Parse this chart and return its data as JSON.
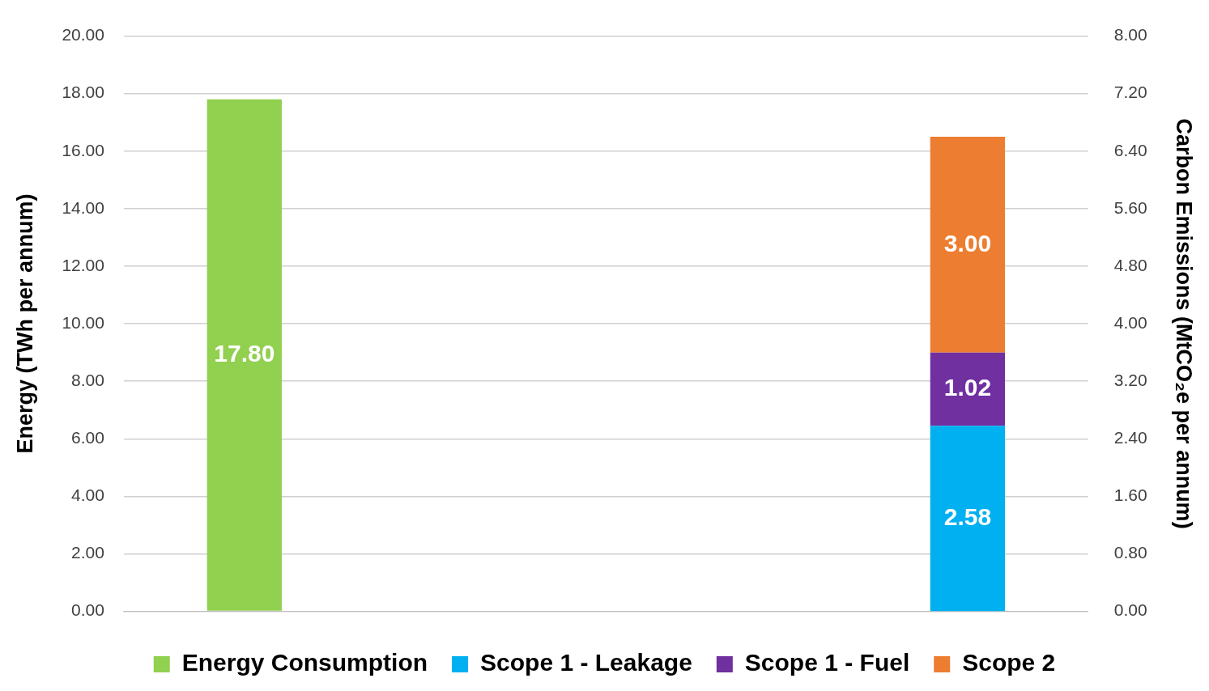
{
  "chart_data": {
    "type": "bar",
    "stacked": true,
    "categories": [
      null,
      null
    ],
    "ylabel": "Energy (TWh per annum)",
    "y2label": "Carbon Emissions (MtCO₂e per annum)",
    "ylim": [
      0,
      20
    ],
    "yticks": [
      {
        "value": 0,
        "label": "0.00"
      },
      {
        "value": 2,
        "label": "2.00"
      },
      {
        "value": 4,
        "label": "4.00"
      },
      {
        "value": 6,
        "label": "6.00"
      },
      {
        "value": 8,
        "label": "8.00"
      },
      {
        "value": 10,
        "label": "10.00"
      },
      {
        "value": 12,
        "label": "12.00"
      },
      {
        "value": 14,
        "label": "14.00"
      },
      {
        "value": 16,
        "label": "16.00"
      },
      {
        "value": 18,
        "label": "18.00"
      },
      {
        "value": 20,
        "label": "20.00"
      }
    ],
    "y2lim": [
      0,
      8
    ],
    "y2ticks": [
      {
        "value": 0,
        "label": "0.00"
      },
      {
        "value": 0.8,
        "label": "0.80"
      },
      {
        "value": 1.6,
        "label": "1.60"
      },
      {
        "value": 2.4,
        "label": "2.40"
      },
      {
        "value": 3.2,
        "label": "3.20"
      },
      {
        "value": 4,
        "label": "4.00"
      },
      {
        "value": 4.8,
        "label": "4.80"
      },
      {
        "value": 5.6,
        "label": "5.60"
      },
      {
        "value": 6.4,
        "label": "6.40"
      },
      {
        "value": 7.2,
        "label": "7.20"
      },
      {
        "value": 8,
        "label": "8.00"
      }
    ],
    "grid": "y",
    "legend": "bottom",
    "series": [
      {
        "name": "Energy Consumption",
        "color": "#92d050",
        "values": [
          17.8,
          null
        ],
        "value_labels": [
          "17.80",
          null
        ]
      },
      {
        "name": "Scope 1 - Leakage",
        "color": "#00b0f0",
        "axis": "y2",
        "values": [
          null,
          2.58
        ],
        "value_labels": [
          null,
          "2.58"
        ]
      },
      {
        "name": "Scope 1 - Fuel",
        "color": "#7030a0",
        "axis": "y2",
        "values": [
          null,
          1.02
        ],
        "value_labels": [
          null,
          "1.02"
        ]
      },
      {
        "name": "Scope 2",
        "color": "#ed7d31",
        "axis": "y2",
        "values": [
          null,
          3.0
        ],
        "value_labels": [
          null,
          "3.00"
        ]
      }
    ]
  }
}
